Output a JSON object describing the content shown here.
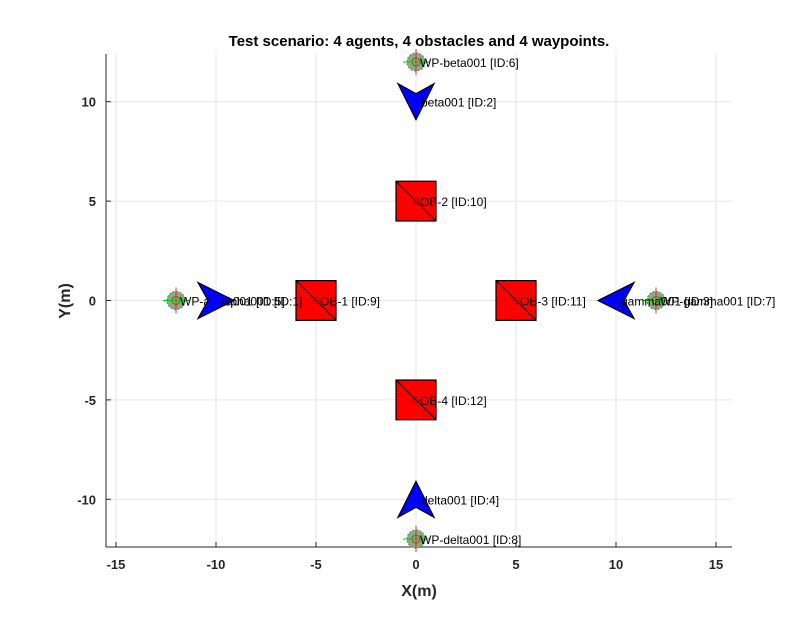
{
  "chart_data": {
    "type": "scatter",
    "title": "Test scenario: 4 agents, 4 obstacles and 4 waypoints.",
    "xlabel": "X(m)",
    "ylabel": "Y(m)",
    "xlim": [
      -15.5,
      15.8
    ],
    "ylim": [
      -12.4,
      12.4
    ],
    "xticks": [
      -15,
      -10,
      -5,
      0,
      5,
      10,
      15
    ],
    "yticks": [
      -10,
      -5,
      0,
      5,
      10
    ],
    "grid": true,
    "colors": {
      "agent": "#0000ff",
      "obstacle": "#ff0000",
      "waypoint": "#808080",
      "waypoint_marker": "#00cc00",
      "grid": "#e6e6e6",
      "axis": "#262626"
    },
    "agents": [
      {
        "label": "beta001 [ID:2]",
        "x": 0,
        "y": 10,
        "heading": "down",
        "icon": "arrowhead-icon"
      },
      {
        "label": "alpha001 [ID:1]",
        "x": -10,
        "y": 0,
        "heading": "right",
        "icon": "arrowhead-icon"
      },
      {
        "label": "gamma001 [ID:3]",
        "x": 10,
        "y": 0,
        "heading": "left",
        "icon": "arrowhead-icon"
      },
      {
        "label": "delta001 [ID:4]",
        "x": 0,
        "y": -10,
        "heading": "up",
        "icon": "arrowhead-icon"
      }
    ],
    "obstacles": [
      {
        "label": "OB-1 [ID:9]",
        "x": -5,
        "y": 0
      },
      {
        "label": "OB-2 [ID:10]",
        "x": 0,
        "y": 5
      },
      {
        "label": "OB-3 [ID:11]",
        "x": 5,
        "y": 0
      },
      {
        "label": "OB-4 [ID:12]",
        "x": 0,
        "y": -5
      }
    ],
    "waypoints": [
      {
        "label": "WP-beta001 [ID:6]",
        "x": 0,
        "y": 12
      },
      {
        "label": "WP-alpha001 [ID:5]",
        "x": -12,
        "y": 0
      },
      {
        "label": "WP-gamma001 [ID:7]",
        "x": 12,
        "y": 0
      },
      {
        "label": "WP-delta001 [ID:8]",
        "x": 0,
        "y": -12
      }
    ]
  }
}
